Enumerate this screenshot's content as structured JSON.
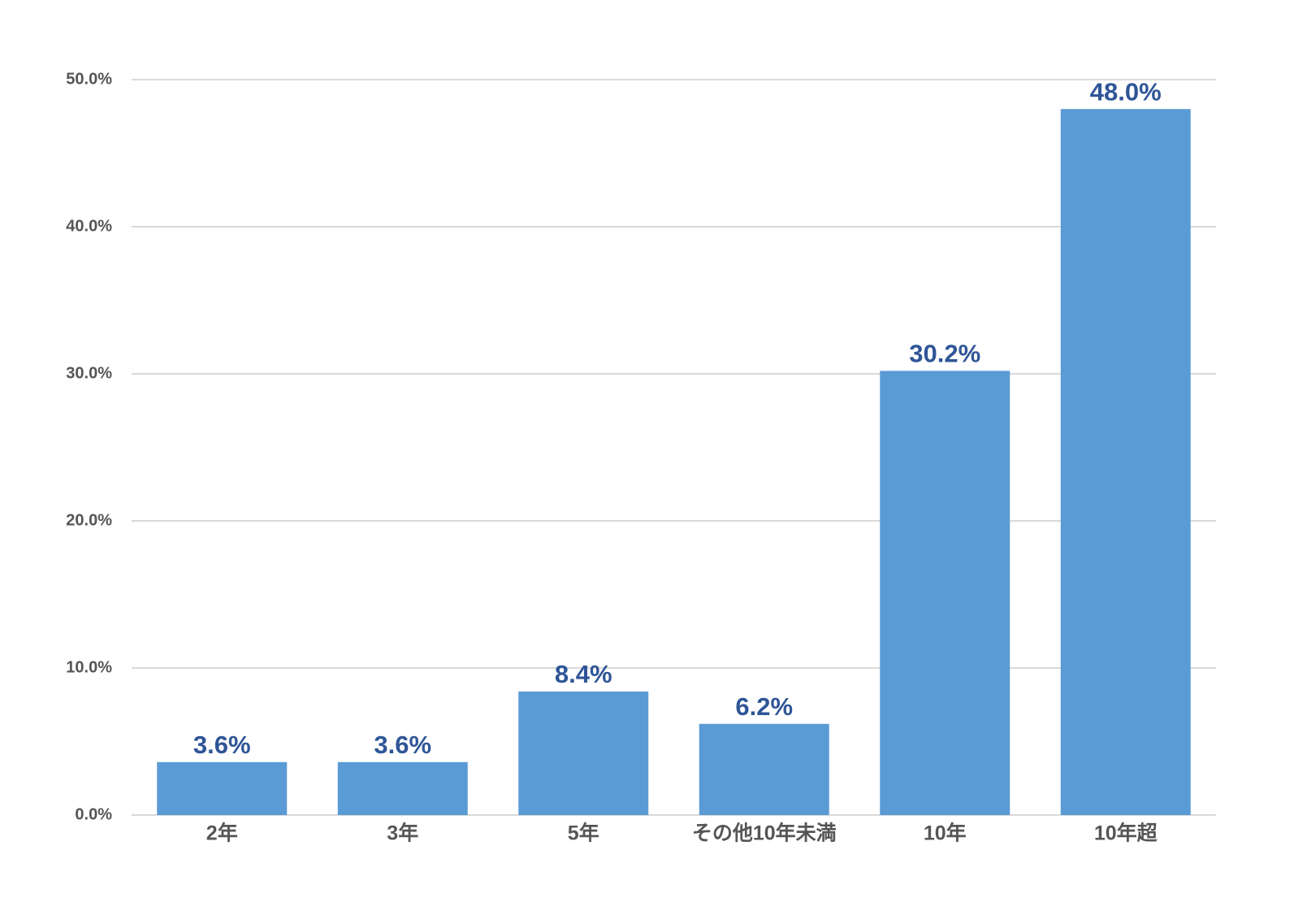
{
  "chart_data": {
    "type": "bar",
    "categories": [
      "2年",
      "3年",
      "5年",
      "その他10年未満",
      "10年",
      "10年超"
    ],
    "values": [
      3.6,
      3.6,
      8.4,
      6.2,
      30.2,
      48.0
    ],
    "value_labels": [
      "3.6%",
      "3.6%",
      "8.4%",
      "6.2%",
      "30.2%",
      "48.0%"
    ],
    "color": "#5b9bd5",
    "label_color": "#2f5597",
    "ylim": [
      0,
      50
    ],
    "yticks": [
      {
        "value": 0,
        "label": "0.0%"
      },
      {
        "value": 10,
        "label": "10.0%"
      },
      {
        "value": 20,
        "label": "20.0%"
      },
      {
        "value": 30,
        "label": "30.0%"
      },
      {
        "value": 40,
        "label": "40.0%"
      },
      {
        "value": 50,
        "label": "50.0%"
      }
    ],
    "grid": true
  }
}
